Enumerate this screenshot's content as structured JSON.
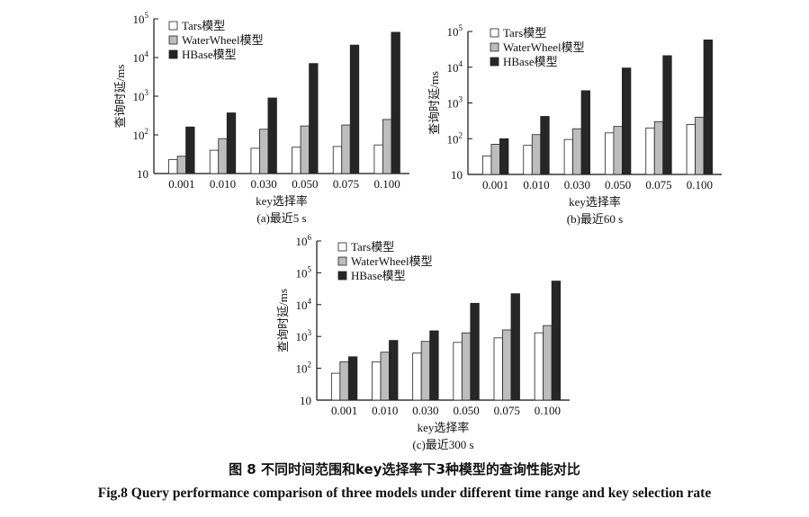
{
  "figure": {
    "caption_cn": "图 8 不同时间范围和key选择率下3种模型的查询性能对比",
    "caption_en": "Fig.8 Query performance comparison of three models under different time range and key selection rate"
  },
  "colors": {
    "Tars模型": "#ffffff",
    "WaterWheel模型": "#bdbdbd",
    "HBase模型": "#262626"
  },
  "chart_data": [
    {
      "type": "bar",
      "subtitle": "(a)最近5 s",
      "xlabel": "key选择率",
      "ylabel": "查询时延/ms",
      "yscale": "log",
      "ylim": [
        10,
        100000
      ],
      "yticks": [
        10,
        100,
        1000,
        10000,
        100000
      ],
      "ytick_labels": [
        {
          "base": "10",
          "exp": ""
        },
        {
          "base": "10",
          "exp": "2"
        },
        {
          "base": "10",
          "exp": "3"
        },
        {
          "base": "10",
          "exp": "4"
        },
        {
          "base": "10",
          "exp": "5"
        }
      ],
      "legend_position": "top-left",
      "categories": [
        "0.001",
        "0.010",
        "0.030",
        "0.050",
        "0.075",
        "0.100"
      ],
      "series": [
        {
          "name": "Tars模型",
          "values": [
            23,
            40,
            45,
            48,
            50,
            55
          ]
        },
        {
          "name": "WaterWheel模型",
          "values": [
            28,
            80,
            140,
            170,
            180,
            250
          ]
        },
        {
          "name": "HBase模型",
          "values": [
            160,
            370,
            900,
            7000,
            21000,
            45000
          ]
        }
      ]
    },
    {
      "type": "bar",
      "subtitle": "(b)最近60 s",
      "xlabel": "key选择率",
      "ylabel": "查询时延/ms",
      "yscale": "log",
      "ylim": [
        10,
        100000
      ],
      "yticks": [
        10,
        100,
        1000,
        10000,
        100000
      ],
      "ytick_labels": [
        {
          "base": "10",
          "exp": ""
        },
        {
          "base": "10",
          "exp": "2"
        },
        {
          "base": "10",
          "exp": "3"
        },
        {
          "base": "10",
          "exp": "4"
        },
        {
          "base": "10",
          "exp": "5"
        }
      ],
      "legend_position": "top-left",
      "categories": [
        "0.001",
        "0.010",
        "0.030",
        "0.050",
        "0.075",
        "0.100"
      ],
      "series": [
        {
          "name": "Tars模型",
          "values": [
            33,
            65,
            95,
            145,
            200,
            250
          ]
        },
        {
          "name": "WaterWheel模型",
          "values": [
            70,
            130,
            190,
            220,
            300,
            400
          ]
        },
        {
          "name": "HBase模型",
          "values": [
            100,
            420,
            2200,
            9500,
            21000,
            58000
          ]
        }
      ]
    },
    {
      "type": "bar",
      "subtitle": "(c)最近300 s",
      "xlabel": "key选择率",
      "ylabel": "查询时延/ms",
      "yscale": "log",
      "ylim": [
        10,
        1000000
      ],
      "yticks": [
        10,
        100,
        1000,
        10000,
        100000,
        1000000
      ],
      "ytick_labels": [
        {
          "base": "10",
          "exp": ""
        },
        {
          "base": "10",
          "exp": "2"
        },
        {
          "base": "10",
          "exp": "3"
        },
        {
          "base": "10",
          "exp": "4"
        },
        {
          "base": "10",
          "exp": "5"
        },
        {
          "base": "10",
          "exp": "6"
        }
      ],
      "legend_position": "top-left",
      "categories": [
        "0.001",
        "0.010",
        "0.030",
        "0.050",
        "0.075",
        "0.100"
      ],
      "series": [
        {
          "name": "Tars模型",
          "values": [
            70,
            160,
            300,
            650,
            900,
            1300
          ]
        },
        {
          "name": "WaterWheel模型",
          "values": [
            160,
            320,
            700,
            1300,
            1600,
            2200
          ]
        },
        {
          "name": "HBase模型",
          "values": [
            230,
            750,
            1500,
            11000,
            22000,
            55000
          ]
        }
      ]
    }
  ]
}
